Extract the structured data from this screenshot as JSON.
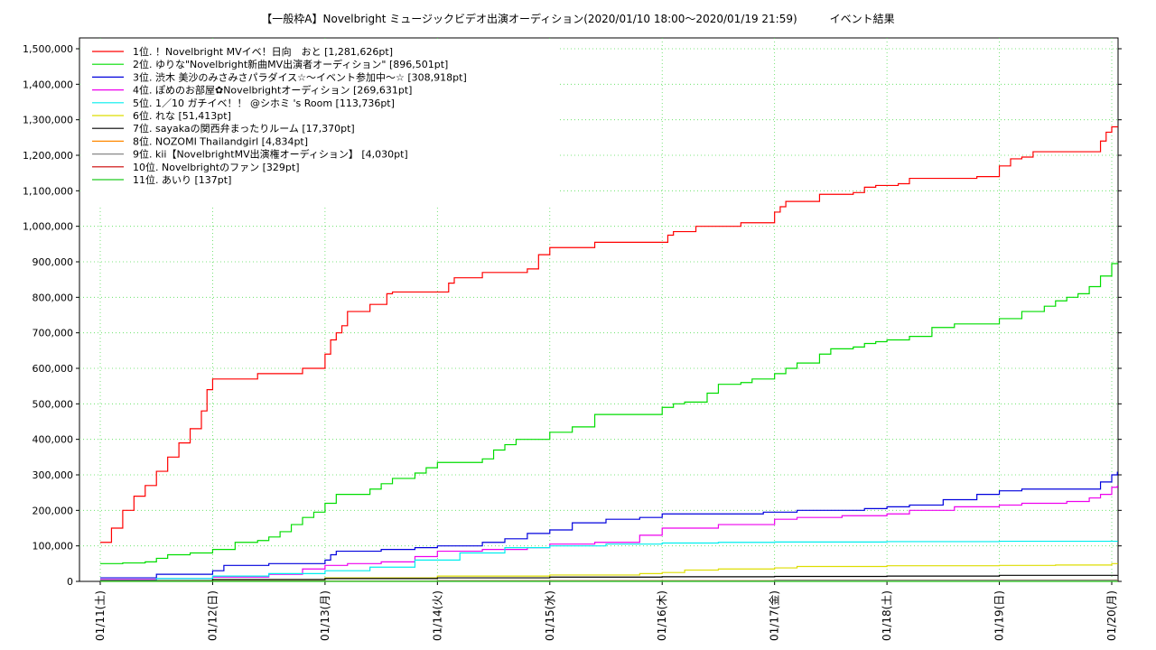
{
  "title": "【一般枠A】Novelbright ミュージックビデオ出演オーディション(2020/01/10 18:00〜2020/01/19 21:59)　　　イベント結果",
  "chart_data": {
    "type": "line",
    "title": "【一般枠A】Novelbright ミュージックビデオ出演オーディション(2020/01/10 18:00〜2020/01/19 21:59)　　　イベント結果",
    "xlabel": "",
    "ylabel": "",
    "ylim": [
      0,
      1550000
    ],
    "xlim": [
      0,
      9.05
    ],
    "grid": true,
    "legend_position": "top-left",
    "y_ticks": [
      0,
      100000,
      200000,
      300000,
      400000,
      500000,
      600000,
      700000,
      800000,
      900000,
      1000000,
      1100000,
      1200000,
      1300000,
      1400000,
      1500000
    ],
    "y_tick_labels": [
      "0",
      "100,000",
      "200,000",
      "300,000",
      "400,000",
      "500,000",
      "600,000",
      "700,000",
      "800,000",
      "900,000",
      "1,000,000",
      "1,100,000",
      "1,200,000",
      "1,300,000",
      "1,400,000",
      "1,500,000"
    ],
    "x_ticks": [
      0,
      1,
      2,
      3,
      4,
      5,
      6,
      7,
      8,
      9
    ],
    "x_tick_labels": [
      "01/11(土)",
      "01/12(日)",
      "01/13(月)",
      "01/14(火)",
      "01/15(水)",
      "01/16(木)",
      "01/17(金)",
      "01/18(土)",
      "01/19(日)",
      "01/20(月)"
    ],
    "series": [
      {
        "name": "1位. ！Novelbright MVイベ！日向　おと [1,281,626pt]",
        "color": "#ff0000",
        "x": [
          0,
          0.1,
          0.2,
          0.3,
          0.4,
          0.5,
          0.6,
          0.7,
          0.8,
          0.9,
          0.95,
          1.0,
          1.35,
          1.4,
          1.7,
          1.8,
          1.95,
          2.0,
          2.05,
          2.1,
          2.15,
          2.2,
          2.3,
          2.4,
          2.5,
          2.55,
          2.6,
          2.7,
          2.8,
          3.1,
          3.15,
          3.2,
          3.3,
          3.4,
          3.5,
          3.8,
          3.9,
          4.0,
          4.2,
          4.4,
          4.6,
          4.8,
          5.0,
          5.05,
          5.1,
          5.2,
          5.3,
          5.4,
          5.5,
          5.7,
          5.8,
          6.0,
          6.05,
          6.1,
          6.2,
          6.4,
          6.5,
          6.6,
          6.7,
          6.8,
          6.9,
          7.0,
          7.1,
          7.2,
          7.3,
          7.4,
          7.5,
          7.6,
          7.7,
          7.8,
          8.0,
          8.1,
          8.2,
          8.3,
          8.4,
          8.6,
          8.8,
          8.9,
          8.95,
          9.0,
          9.05
        ],
        "values": [
          110000,
          150000,
          200000,
          240000,
          270000,
          310000,
          350000,
          390000,
          430000,
          480000,
          540000,
          570000,
          570000,
          585000,
          585000,
          600000,
          600000,
          640000,
          680000,
          700000,
          720000,
          760000,
          760000,
          780000,
          780000,
          810000,
          815000,
          815000,
          815000,
          840000,
          855000,
          855000,
          855000,
          870000,
          870000,
          880000,
          920000,
          940000,
          940000,
          955000,
          955000,
          955000,
          955000,
          975000,
          985000,
          985000,
          1000000,
          1000000,
          1000000,
          1010000,
          1010000,
          1040000,
          1055000,
          1070000,
          1070000,
          1090000,
          1090000,
          1090000,
          1095000,
          1110000,
          1115000,
          1115000,
          1120000,
          1135000,
          1135000,
          1135000,
          1135000,
          1135000,
          1135000,
          1140000,
          1170000,
          1190000,
          1195000,
          1210000,
          1210000,
          1210000,
          1210000,
          1240000,
          1265000,
          1280000,
          1281626
        ]
      },
      {
        "name": "2位. ゆりな\"Novelbright新曲MV出演者オーディション\" [896,501pt]",
        "color": "#00dd00",
        "x": [
          0,
          0.2,
          0.4,
          0.5,
          0.6,
          0.8,
          1.0,
          1.2,
          1.4,
          1.5,
          1.6,
          1.7,
          1.8,
          1.9,
          2.0,
          2.1,
          2.2,
          2.4,
          2.5,
          2.6,
          2.8,
          2.9,
          3.0,
          3.1,
          3.2,
          3.4,
          3.5,
          3.6,
          3.7,
          3.8,
          3.9,
          4.0,
          4.2,
          4.4,
          4.6,
          4.8,
          5.0,
          5.1,
          5.2,
          5.4,
          5.5,
          5.6,
          5.7,
          5.8,
          6.0,
          6.1,
          6.2,
          6.4,
          6.5,
          6.6,
          6.7,
          6.8,
          6.9,
          7.0,
          7.2,
          7.4,
          7.6,
          7.8,
          8.0,
          8.2,
          8.4,
          8.5,
          8.6,
          8.7,
          8.8,
          8.9,
          9.0,
          9.05
        ],
        "values": [
          50000,
          52000,
          55000,
          65000,
          75000,
          80000,
          90000,
          110000,
          115000,
          125000,
          140000,
          160000,
          180000,
          195000,
          220000,
          245000,
          245000,
          260000,
          275000,
          290000,
          305000,
          320000,
          335000,
          335000,
          335000,
          345000,
          370000,
          385000,
          400000,
          400000,
          400000,
          420000,
          435000,
          470000,
          470000,
          470000,
          490000,
          500000,
          505000,
          530000,
          555000,
          555000,
          560000,
          570000,
          585000,
          600000,
          615000,
          640000,
          655000,
          655000,
          660000,
          670000,
          675000,
          680000,
          690000,
          715000,
          725000,
          725000,
          740000,
          760000,
          775000,
          790000,
          800000,
          810000,
          830000,
          860000,
          895000,
          896501
        ]
      },
      {
        "name": "3位. 渋木 美沙のみさみさパラダイス☆〜イベント参加中〜☆ [308,918pt]",
        "color": "#0000dd",
        "x": [
          0,
          0.5,
          1.0,
          1.1,
          1.5,
          2.0,
          2.05,
          2.1,
          2.5,
          2.8,
          3.0,
          3.4,
          3.6,
          3.8,
          4.0,
          4.2,
          4.5,
          4.8,
          5.0,
          5.5,
          5.9,
          6.2,
          6.5,
          6.8,
          7.0,
          7.2,
          7.5,
          7.8,
          8.0,
          8.2,
          8.5,
          8.8,
          8.9,
          9.0,
          9.05
        ],
        "values": [
          10000,
          20000,
          30000,
          45000,
          50000,
          60000,
          75000,
          85000,
          90000,
          95000,
          100000,
          110000,
          120000,
          135000,
          145000,
          165000,
          175000,
          180000,
          190000,
          190000,
          195000,
          200000,
          200000,
          205000,
          210000,
          215000,
          230000,
          245000,
          255000,
          260000,
          260000,
          260000,
          280000,
          300000,
          308918
        ]
      },
      {
        "name": "4位. ぽめのお部屋✿Novelbrightオーディション [269,631pt]",
        "color": "#ee00ee",
        "x": [
          0,
          0.5,
          1.0,
          1.5,
          1.8,
          2.0,
          2.2,
          2.5,
          2.8,
          3.0,
          3.4,
          3.8,
          4.0,
          4.4,
          4.8,
          5.0,
          5.5,
          6.0,
          6.2,
          6.6,
          7.0,
          7.2,
          7.6,
          8.0,
          8.2,
          8.6,
          8.8,
          8.9,
          9.0,
          9.05
        ],
        "values": [
          5000,
          8000,
          12000,
          20000,
          35000,
          45000,
          50000,
          55000,
          70000,
          85000,
          90000,
          95000,
          105000,
          110000,
          130000,
          150000,
          160000,
          175000,
          180000,
          185000,
          190000,
          200000,
          210000,
          215000,
          220000,
          225000,
          235000,
          245000,
          265000,
          269631
        ]
      },
      {
        "name": "5位. 1／10 ガチイベ！！ @シホミ 's Room [113,736pt]",
        "color": "#00eeee",
        "x": [
          0,
          0.5,
          1.0,
          1.5,
          2.0,
          2.4,
          2.8,
          3.2,
          3.6,
          4.0,
          4.5,
          5.0,
          5.5,
          6.0,
          7.0,
          8.0,
          9.05
        ],
        "values": [
          3000,
          8000,
          15000,
          22000,
          30000,
          40000,
          60000,
          80000,
          95000,
          100000,
          105000,
          108000,
          110000,
          111000,
          112000,
          113000,
          113736
        ]
      },
      {
        "name": "6位. れな [51,413pt]",
        "color": "#dddd00",
        "x": [
          0,
          1.0,
          2.0,
          3.0,
          4.0,
          4.8,
          5.0,
          5.2,
          5.5,
          6.0,
          6.2,
          7.0,
          8.0,
          8.5,
          9.0,
          9.05
        ],
        "values": [
          2000,
          5000,
          10000,
          15000,
          18000,
          22000,
          25000,
          32000,
          35000,
          38000,
          42000,
          44000,
          45000,
          46000,
          50000,
          51413
        ]
      },
      {
        "name": "7位. sayakaの関西弁まったりルーム [17,370pt]",
        "color": "#000000",
        "x": [
          0,
          1.0,
          2.0,
          3.0,
          4.0,
          5.0,
          6.0,
          7.0,
          8.0,
          9.05
        ],
        "values": [
          2000,
          5000,
          8000,
          10000,
          12000,
          13000,
          14000,
          15000,
          17000,
          17370
        ]
      },
      {
        "name": "8位. NOZOMI Thailandgirl [4,834pt]",
        "color": "#ff8800",
        "x": [
          0,
          3.0,
          6.0,
          9.05
        ],
        "values": [
          500,
          2000,
          4000,
          4834
        ]
      },
      {
        "name": "9位. kii【NovelbrightMV出演権オーディション】 [4,030pt]",
        "color": "#888888",
        "x": [
          0,
          3.0,
          6.0,
          9.05
        ],
        "values": [
          300,
          1500,
          3500,
          4030
        ]
      },
      {
        "name": "10位. Novelbrightのファン [329pt]",
        "color": "#cc0000",
        "x": [
          0,
          9.05
        ],
        "values": [
          100,
          329
        ]
      },
      {
        "name": "11位. あいり [137pt]",
        "color": "#22cc22",
        "x": [
          0,
          9.05
        ],
        "values": [
          50,
          137
        ]
      }
    ]
  }
}
